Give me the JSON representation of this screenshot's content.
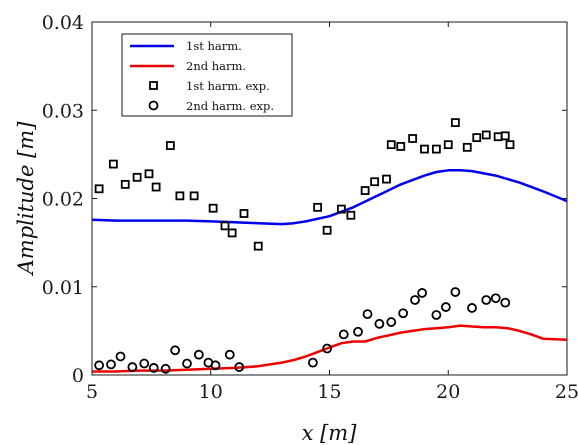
{
  "chart_data": {
    "type": "scatter",
    "xlabel": "x [m]",
    "ylabel": "Amplitude [m]",
    "xlim": [
      5,
      25
    ],
    "ylim": [
      0,
      0.04
    ],
    "xticks": [
      "5",
      "10",
      "15",
      "20",
      "25"
    ],
    "yticks": [
      "0",
      "0.01",
      "0.02",
      "0.03",
      "0.04"
    ],
    "grid": false,
    "legend_position": "top-left",
    "series": [
      {
        "name": "1st harm.",
        "kind": "line",
        "color": "#0000ee",
        "x": [
          5.0,
          6.0,
          7.0,
          8.0,
          9.0,
          10.0,
          11.0,
          12.0,
          13.0,
          13.5,
          14.0,
          15.0,
          16.0,
          17.0,
          18.0,
          19.0,
          19.5,
          20.0,
          20.5,
          21.0,
          22.0,
          23.0,
          24.0,
          25.0
        ],
        "y": [
          0.0176,
          0.0175,
          0.0175,
          0.0175,
          0.0175,
          0.0174,
          0.0173,
          0.0172,
          0.0171,
          0.0172,
          0.0174,
          0.018,
          0.019,
          0.0203,
          0.0216,
          0.0226,
          0.023,
          0.0232,
          0.0232,
          0.0231,
          0.0226,
          0.0218,
          0.0208,
          0.0197
        ]
      },
      {
        "name": "2nd harm.",
        "kind": "line",
        "color": "#ee0000",
        "x": [
          5.0,
          6.0,
          7.0,
          8.0,
          9.0,
          10.0,
          11.0,
          11.5,
          12.0,
          12.5,
          13.0,
          13.5,
          14.0,
          14.5,
          15.0,
          15.5,
          16.0,
          16.5,
          17.0,
          17.5,
          18.0,
          18.5,
          19.0,
          19.5,
          20.0,
          20.5,
          21.0,
          21.5,
          22.0,
          22.5,
          23.0,
          23.5,
          24.0,
          25.0
        ],
        "y": [
          0.0004,
          0.0004,
          0.0005,
          0.0005,
          0.0006,
          0.0007,
          0.0008,
          0.0009,
          0.001,
          0.0012,
          0.0014,
          0.0017,
          0.0021,
          0.0026,
          0.0031,
          0.0036,
          0.0038,
          0.0038,
          0.0042,
          0.0045,
          0.0048,
          0.005,
          0.0052,
          0.0053,
          0.0054,
          0.0056,
          0.0055,
          0.0054,
          0.0054,
          0.0053,
          0.005,
          0.0046,
          0.0041,
          0.004
        ]
      },
      {
        "name": "1st harm. exp.",
        "kind": "marker",
        "marker": "square",
        "color": "#000000",
        "x": [
          5.3,
          5.9,
          6.4,
          6.9,
          7.4,
          7.7,
          8.3,
          8.7,
          9.3,
          10.1,
          10.6,
          10.9,
          11.4,
          12.0,
          14.5,
          14.9,
          15.5,
          15.9,
          16.5,
          16.9,
          17.4,
          17.6,
          18.0,
          18.5,
          19.0,
          19.5,
          20.0,
          20.3,
          20.8,
          21.2,
          21.6,
          22.1,
          22.4,
          22.6
        ],
        "y": [
          0.0211,
          0.0239,
          0.0216,
          0.0224,
          0.0228,
          0.0213,
          0.026,
          0.0203,
          0.0203,
          0.0189,
          0.0169,
          0.0161,
          0.0183,
          0.0146,
          0.019,
          0.0164,
          0.0188,
          0.0181,
          0.0209,
          0.0219,
          0.0222,
          0.0261,
          0.0259,
          0.0268,
          0.0256,
          0.0256,
          0.0261,
          0.0286,
          0.0258,
          0.0269,
          0.0272,
          0.027,
          0.0271,
          0.0261
        ]
      },
      {
        "name": "2nd harm. exp.",
        "kind": "marker",
        "marker": "circle",
        "color": "#000000",
        "x": [
          5.3,
          5.8,
          6.2,
          6.7,
          7.2,
          7.6,
          8.1,
          8.5,
          9.0,
          9.5,
          9.9,
          10.2,
          10.8,
          11.2,
          14.3,
          14.9,
          15.6,
          16.2,
          16.6,
          17.1,
          17.6,
          18.1,
          18.6,
          18.9,
          19.5,
          19.9,
          20.3,
          21.0,
          21.6,
          22.0,
          22.4
        ],
        "y": [
          0.0011,
          0.0012,
          0.0021,
          0.0009,
          0.0013,
          0.0008,
          0.0007,
          0.0028,
          0.0013,
          0.0023,
          0.0014,
          0.0011,
          0.0023,
          0.0009,
          0.0014,
          0.003,
          0.0046,
          0.0049,
          0.0069,
          0.0058,
          0.006,
          0.007,
          0.0085,
          0.0093,
          0.0068,
          0.0077,
          0.0094,
          0.0076,
          0.0085,
          0.0087,
          0.0082
        ]
      }
    ]
  }
}
